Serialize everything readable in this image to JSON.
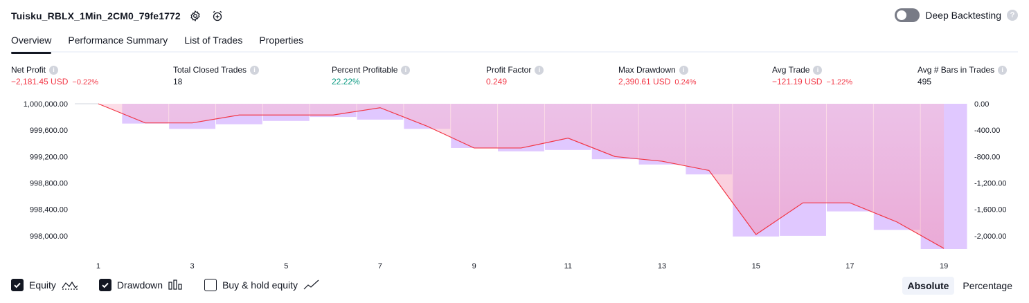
{
  "header": {
    "strategy_name": "Tuisku_RBLX_1Min_2CM0_79fe1772",
    "deep_backtesting_label": "Deep Backtesting",
    "deep_backtesting_on": false
  },
  "tabs": [
    {
      "label": "Overview",
      "active": true
    },
    {
      "label": "Performance Summary",
      "active": false
    },
    {
      "label": "List of Trades",
      "active": false
    },
    {
      "label": "Properties",
      "active": false
    }
  ],
  "metrics": [
    {
      "label": "Net Profit",
      "value": "−2,181.45 USD",
      "sub": "−0.22%",
      "tone": "neg"
    },
    {
      "label": "Total Closed Trades",
      "value": "18",
      "sub": "",
      "tone": "neu"
    },
    {
      "label": "Percent Profitable",
      "value": "22.22%",
      "sub": "",
      "tone": "pos"
    },
    {
      "label": "Profit Factor",
      "value": "0.249",
      "sub": "",
      "tone": "neg"
    },
    {
      "label": "Max Drawdown",
      "value": "2,390.61 USD",
      "sub": "0.24%",
      "tone": "neg"
    },
    {
      "label": "Avg Trade",
      "value": "−121.19 USD",
      "sub": "−1.22%",
      "tone": "neg"
    },
    {
      "label": "Avg # Bars in Trades",
      "value": "495",
      "sub": "",
      "tone": "neu"
    }
  ],
  "chart_data": {
    "type": "line",
    "x": [
      1,
      2,
      3,
      4,
      5,
      6,
      7,
      8,
      9,
      10,
      11,
      12,
      13,
      14,
      15,
      16,
      17,
      18,
      19
    ],
    "x_tick_labels": [
      "1",
      "3",
      "5",
      "7",
      "9",
      "11",
      "13",
      "15",
      "17",
      "19"
    ],
    "y_left_ticks": [
      "1,000,000.00",
      "999,600.00",
      "999,200.00",
      "998,800.00",
      "998,400.00",
      "998,000.00"
    ],
    "y_left_lim": [
      997800,
      1000000
    ],
    "y_right_ticks": [
      "0.00",
      "-400.00",
      "-800.00",
      "-1,200.00",
      "-1,600.00",
      "-2,000.00"
    ],
    "y_right_lim": [
      -2200,
      0
    ],
    "series": [
      {
        "name": "Equity",
        "type": "line",
        "values": [
          1000000,
          999710,
          999710,
          999830,
          999830,
          999830,
          999940,
          999660,
          999330,
          999330,
          999480,
          999200,
          999130,
          998990,
          998020,
          998500,
          998500,
          998210,
          997810
        ]
      },
      {
        "name": "Drawdown",
        "type": "bar",
        "values": [
          0,
          -300,
          -380,
          -310,
          -260,
          -200,
          -240,
          -380,
          -670,
          -720,
          -700,
          -840,
          -920,
          -1070,
          -2010,
          -2000,
          -1630,
          -1910,
          -2200
        ]
      }
    ],
    "colors": {
      "equity": "#f23645",
      "drawdown": "#e0c8ff",
      "fill": "#f48fb1"
    },
    "grid": false
  },
  "legend": {
    "equity": {
      "label": "Equity",
      "checked": true
    },
    "drawdown": {
      "label": "Drawdown",
      "checked": true
    },
    "buyhold": {
      "label": "Buy & hold equity",
      "checked": false
    }
  },
  "view_modes": [
    {
      "label": "Absolute",
      "active": true
    },
    {
      "label": "Percentage",
      "active": false
    }
  ]
}
